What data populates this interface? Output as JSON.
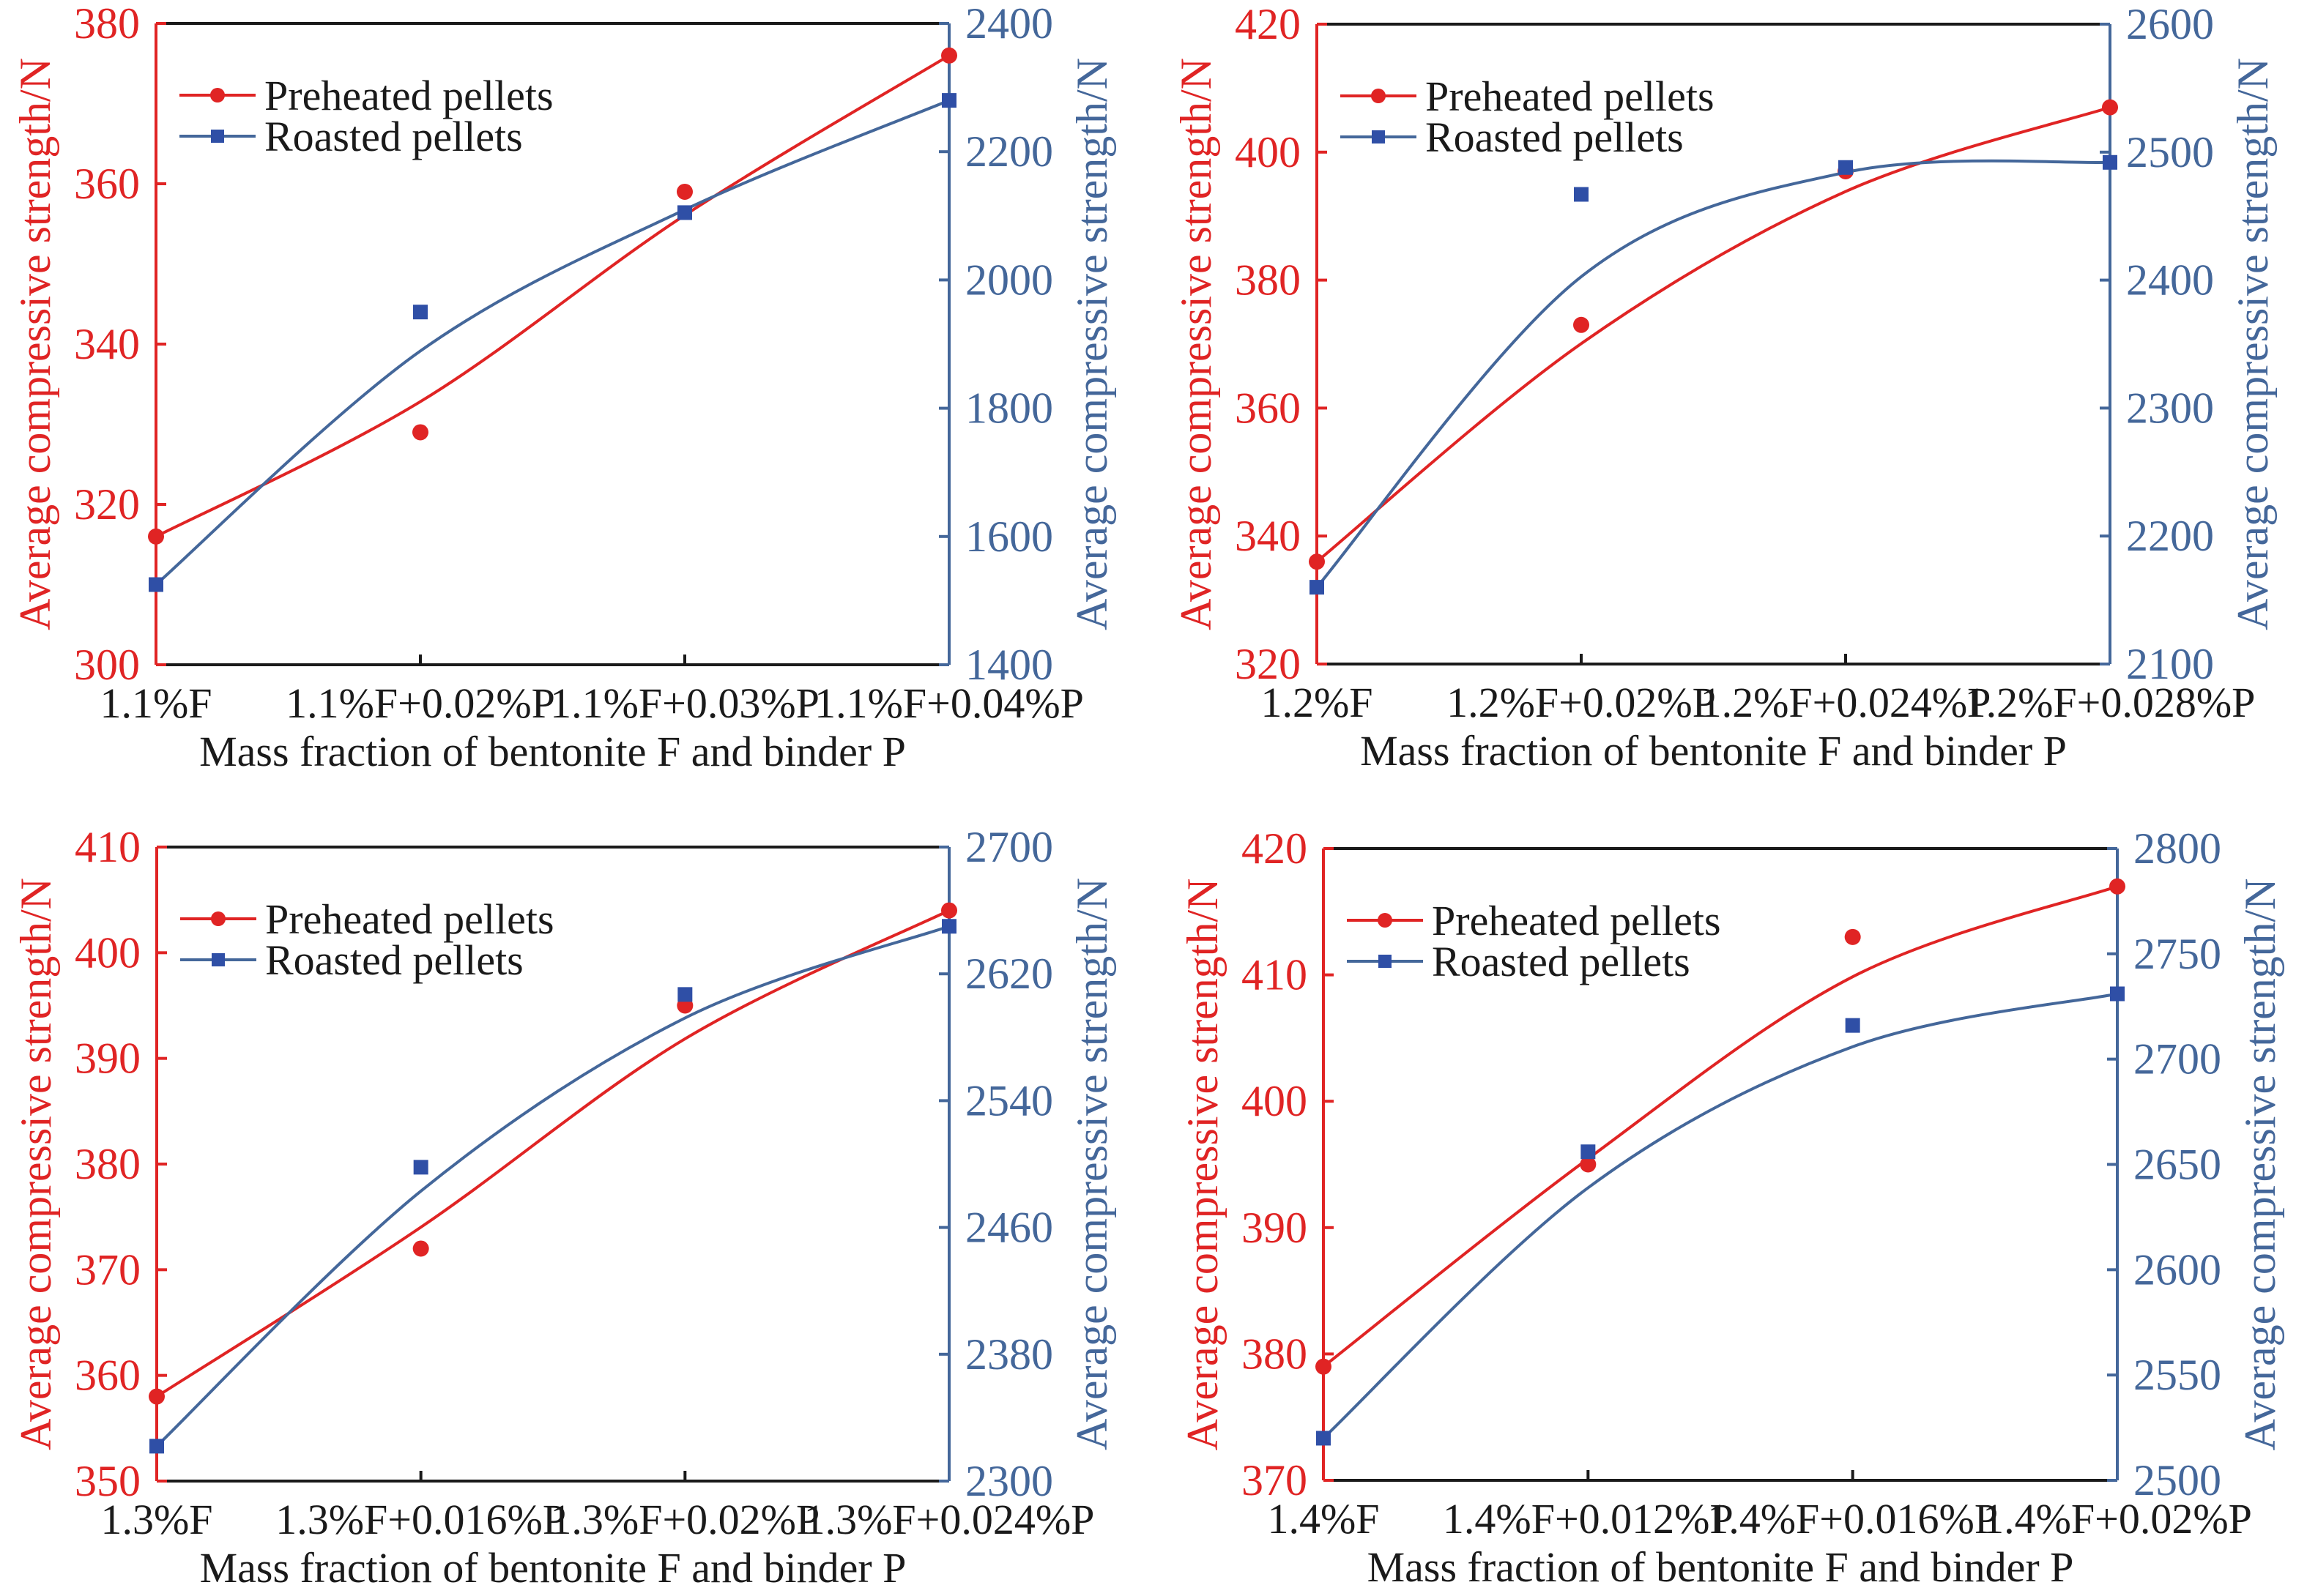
{
  "colors": {
    "preheated": "#e02424",
    "roasted_line": "#44679a",
    "roasted_marker": "#2f4fa6",
    "frame": "#1a1a1a"
  },
  "chart_data": [
    {
      "type": "line",
      "title": "",
      "xlabel": "Mass fraction of bentonite F and binder P",
      "ylabel": "Average compressive strength/N",
      "y2label": "Average compressive strength/N",
      "categories": [
        "1.1%F",
        "1.1%F+0.02%P",
        "1.1%F+0.03%P",
        "1.1%F+0.04%P"
      ],
      "ylim": [
        300,
        380
      ],
      "yticks": [
        "300",
        "320",
        "340",
        "360",
        "380"
      ],
      "y2lim": [
        1400,
        2400
      ],
      "y2ticks": [
        "1400",
        "1600",
        "1800",
        "2000",
        "2200",
        "2400"
      ],
      "legend_position": "top-left",
      "grid": false,
      "series": [
        {
          "name": "Preheated pellets",
          "axis": "left",
          "marker": "circle",
          "values": [
            316,
            329,
            359,
            376
          ]
        },
        {
          "name": "Roasted pellets",
          "axis": "right",
          "marker": "square",
          "values": [
            1525,
            1950,
            2105,
            2280
          ]
        }
      ]
    },
    {
      "type": "line",
      "title": "",
      "xlabel": "Mass fraction of bentonite F and binder P",
      "ylabel": "Average compressive strength/N",
      "y2label": "Average compressive strength/N",
      "categories": [
        "1.2%F",
        "1.2%F+0.02%P",
        "1.2%F+0.024%P",
        "1.2%F+0.028%P"
      ],
      "ylim": [
        320,
        420
      ],
      "yticks": [
        "320",
        "340",
        "360",
        "380",
        "400",
        "420"
      ],
      "y2lim": [
        2100,
        2600
      ],
      "y2ticks": [
        "2100",
        "2200",
        "2300",
        "2400",
        "2500",
        "2600"
      ],
      "legend_position": "top-left",
      "grid": false,
      "series": [
        {
          "name": "Preheated pellets",
          "axis": "left",
          "marker": "circle",
          "values": [
            336,
            373,
            397,
            407
          ]
        },
        {
          "name": "Roasted pellets",
          "axis": "right",
          "marker": "square",
          "values": [
            2160,
            2467,
            2488,
            2492
          ]
        }
      ]
    },
    {
      "type": "line",
      "title": "",
      "xlabel": "Mass fraction of bentonite F and binder P",
      "ylabel": "Average compressive strength/N",
      "y2label": "Average compressive strength/N",
      "categories": [
        "1.3%F",
        "1.3%F+0.016%P",
        "1.3%F+0.02%P",
        "1.3%F+0.024%P"
      ],
      "ylim": [
        350,
        410
      ],
      "yticks": [
        "350",
        "360",
        "370",
        "380",
        "390",
        "400",
        "410"
      ],
      "y2lim": [
        2300,
        2700
      ],
      "y2ticks": [
        "2300",
        "2380",
        "2460",
        "2540",
        "2620",
        "2700"
      ],
      "legend_position": "top-left",
      "grid": false,
      "series": [
        {
          "name": "Preheated pellets",
          "axis": "left",
          "marker": "circle",
          "values": [
            358,
            372,
            395,
            404
          ]
        },
        {
          "name": "Roasted pellets",
          "axis": "right",
          "marker": "square",
          "values": [
            2322,
            2498,
            2607,
            2650
          ]
        }
      ]
    },
    {
      "type": "line",
      "title": "",
      "xlabel": "Mass fraction of bentonite F and binder P",
      "ylabel": "Average compressive strength/N",
      "y2label": "Average compressive strength/N",
      "categories": [
        "1.4%F",
        "1.4%F+0.012%P",
        "1.4%F+0.016%P",
        "1.4%F+0.02%P"
      ],
      "ylim": [
        370,
        420
      ],
      "yticks": [
        "370",
        "380",
        "390",
        "400",
        "410",
        "420"
      ],
      "y2lim": [
        2500,
        2800
      ],
      "y2ticks": [
        "2500",
        "2550",
        "2600",
        "2650",
        "2700",
        "2750",
        "2800"
      ],
      "legend_position": "top-left",
      "grid": false,
      "series": [
        {
          "name": "Preheated pellets",
          "axis": "left",
          "marker": "circle",
          "values": [
            379,
            395,
            413,
            417
          ]
        },
        {
          "name": "Roasted pellets",
          "axis": "right",
          "marker": "square",
          "values": [
            2520,
            2656,
            2716,
            2731
          ]
        }
      ]
    }
  ]
}
